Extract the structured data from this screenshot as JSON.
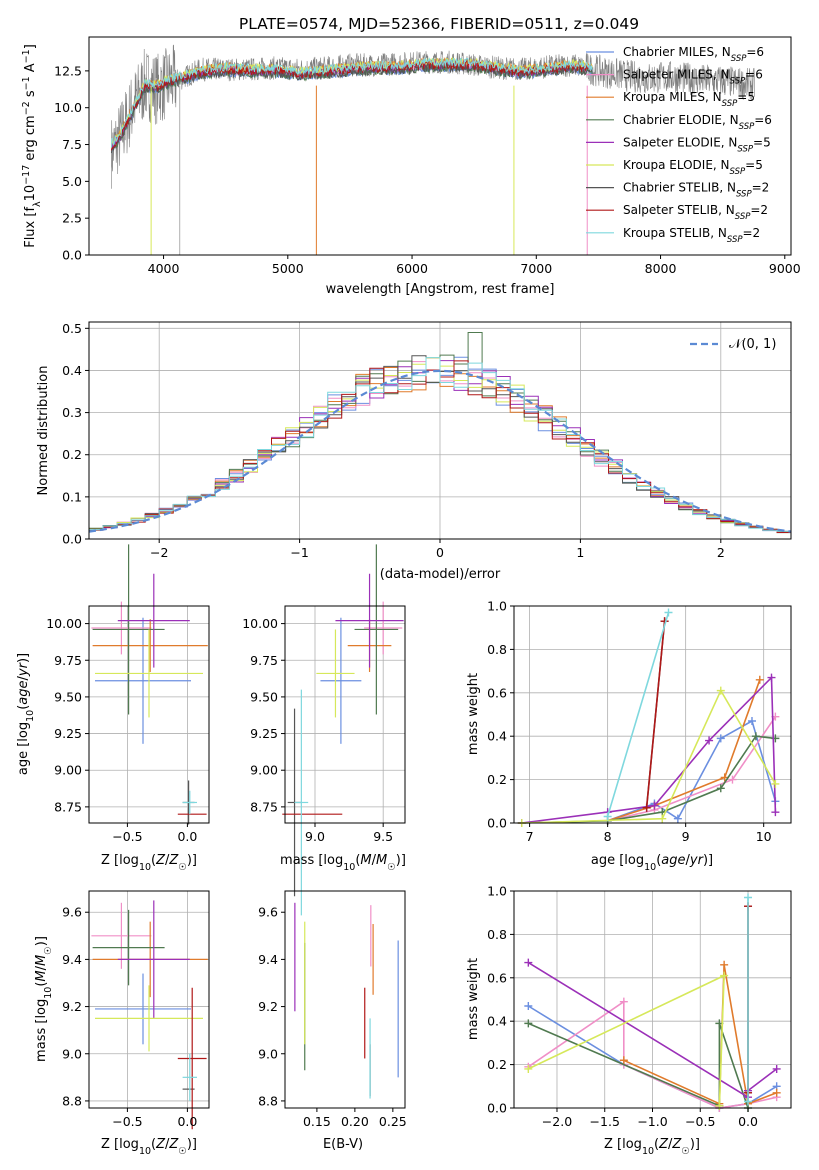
{
  "figure": {
    "title": "PLATE=0574, MJD=52366, FIBERID=0511, z=0.049"
  },
  "colors": {
    "Chabrier MILES": "#6b8fe0",
    "Salpeter MILES": "#f08fc7",
    "Kroupa MILES": "#e07b2c",
    "Chabrier ELODIE": "#507a50",
    "Salpeter ELODIE": "#9b30b8",
    "Kroupa ELODIE": "#d6e85a",
    "Chabrier STELIB": "#555555",
    "Salpeter STELIB": "#b01818",
    "Kroupa STELIB": "#7fd8de"
  },
  "chart_data": [
    {
      "id": "spectrum",
      "type": "line",
      "xlabel": "wavelength [Angstrom, rest frame]",
      "ylabel": "Flux [f_λ10^-17 erg cm^-2 s^-1 A^-1]",
      "xlim": [
        3400,
        9050
      ],
      "ylim": [
        0,
        14.8
      ],
      "xticks": [
        4000,
        5000,
        6000,
        7000,
        8000,
        9000
      ],
      "yticks": [
        0.0,
        2.5,
        5.0,
        7.5,
        10.0,
        12.5
      ],
      "ytick_labels": [
        "0.0",
        "2.5",
        "5.0",
        "7.5",
        "10.0",
        "12.5"
      ],
      "grid": false,
      "legend_position": "right",
      "series": [
        {
          "name": "Chabrier MILES, N_SSP=6",
          "label_main": "Chabrier MILES, N",
          "label_sub": "SSP",
          "label_tail": "=6"
        },
        {
          "name": "Salpeter MILES, N_SSP=6",
          "label_main": "Salpeter MILES, N",
          "label_sub": "SSP",
          "label_tail": "=6"
        },
        {
          "name": "Kroupa MILES, N_SSP=5",
          "label_main": "Kroupa MILES, N",
          "label_sub": "SSP",
          "label_tail": "=5"
        },
        {
          "name": "Chabrier ELODIE, N_SSP=6",
          "label_main": "Chabrier ELODIE, N",
          "label_sub": "SSP",
          "label_tail": "=6"
        },
        {
          "name": "Salpeter ELODIE, N_SSP=5",
          "label_main": "Salpeter ELODIE, N",
          "label_sub": "SSP",
          "label_tail": "=5"
        },
        {
          "name": "Kroupa ELODIE, N_SSP=5",
          "label_main": "Kroupa ELODIE, N",
          "label_sub": "SSP",
          "label_tail": "=5"
        },
        {
          "name": "Chabrier STELIB, N_SSP=2",
          "label_main": "Chabrier STELIB, N",
          "label_sub": "SSP",
          "label_tail": "=2"
        },
        {
          "name": "Salpeter STELIB, N_SSP=2",
          "label_main": "Salpeter STELIB, N",
          "label_sub": "SSP",
          "label_tail": "=2"
        },
        {
          "name": "Kroupa STELIB, N_SSP=2",
          "label_main": "Kroupa STELIB, N",
          "label_sub": "SSP",
          "label_tail": "=2"
        }
      ],
      "data_spectrum": {
        "x": [
          3580,
          3650,
          3750,
          3850,
          3950,
          4050,
          4150,
          4300,
          4500,
          4700,
          4900,
          5100,
          5300,
          5500,
          5700,
          5900,
          6100,
          6300,
          6500,
          6700,
          6900,
          7100,
          7300,
          7500,
          7700,
          7900,
          8100,
          8300,
          8500,
          8700
        ],
        "y": [
          7.0,
          8.0,
          10.0,
          11.6,
          11.3,
          11.7,
          12.0,
          12.6,
          12.6,
          12.6,
          12.7,
          12.6,
          12.7,
          12.9,
          12.9,
          13.0,
          13.1,
          13.1,
          12.9,
          12.7,
          12.6,
          12.8,
          12.9,
          12.5,
          12.2,
          12.0,
          12.1,
          11.9,
          11.8,
          11.6
        ]
      },
      "model_spectrum": {
        "x": [
          3580,
          3650,
          3750,
          3850,
          3950,
          4050,
          4150,
          4300,
          4500,
          4700,
          4900,
          5100,
          5300,
          5500,
          5700,
          5900,
          6100,
          6300,
          6500,
          6700,
          6900,
          7100,
          7300,
          7450
        ],
        "y": [
          7.4,
          8.0,
          9.8,
          11.5,
          11.4,
          11.8,
          12.0,
          12.4,
          12.6,
          12.5,
          12.5,
          12.3,
          12.4,
          12.6,
          12.7,
          12.7,
          12.9,
          12.9,
          12.9,
          12.6,
          12.4,
          12.6,
          12.8,
          12.6
        ]
      }
    },
    {
      "id": "residuals",
      "type": "bar",
      "xlabel": "(data-model)/error",
      "ylabel": "Normed distribution",
      "xlim": [
        -2.5,
        2.5
      ],
      "ylim": [
        0,
        0.515
      ],
      "xticks": [
        -2,
        -1,
        0,
        1,
        2
      ],
      "xtick_labels": [
        "−2",
        "−1",
        "0",
        "1",
        "2"
      ],
      "yticks": [
        0.0,
        0.1,
        0.2,
        0.3,
        0.4,
        0.5
      ],
      "ytick_labels": [
        "0.0",
        "0.1",
        "0.2",
        "0.3",
        "0.4",
        "0.5"
      ],
      "grid": true,
      "legend_position": "top-right",
      "legend_label": "𝒩(0, 1)",
      "gaussian": {
        "mean": 0,
        "sigma": 1
      }
    },
    {
      "id": "age_vs_Z",
      "type": "scatter",
      "xlabel": "Z [log10(Z/Z☉)]",
      "ylabel": "age  [log10(age/yr)]",
      "xlim": [
        -0.82,
        0.18
      ],
      "ylim": [
        8.64,
        10.12
      ],
      "xticks": [
        -0.5,
        0.0
      ],
      "xtick_labels": [
        "−0.5",
        "0.0"
      ],
      "yticks": [
        8.75,
        9.0,
        9.25,
        9.5,
        9.75,
        10.0
      ],
      "ytick_labels": [
        "8.75",
        "9.00",
        "9.25",
        "9.50",
        "9.75",
        "10.00"
      ],
      "grid": true,
      "points": [
        {
          "series": "Chabrier MILES",
          "x": -0.37,
          "y": 9.61,
          "xerr": 0.4,
          "yerr": 0.43
        },
        {
          "series": "Salpeter MILES",
          "x": -0.55,
          "y": 9.97,
          "xerr": 0.25,
          "yerr": 0.18
        },
        {
          "series": "Kroupa MILES",
          "x": -0.31,
          "y": 9.85,
          "xerr": 0.48,
          "yerr": 0.18
        },
        {
          "series": "Chabrier ELODIE",
          "x": -0.49,
          "y": 9.96,
          "xerr": 0.3,
          "yerr": 0.58
        },
        {
          "series": "Salpeter ELODIE",
          "x": -0.28,
          "y": 10.02,
          "xerr": 0.3,
          "yerr": 0.32
        },
        {
          "series": "Kroupa ELODIE",
          "x": -0.32,
          "y": 9.66,
          "xerr": 0.45,
          "yerr": 0.3
        },
        {
          "series": "Chabrier STELIB",
          "x": 0.01,
          "y": 8.78,
          "xerr": 0.05,
          "yerr": 0.15
        },
        {
          "series": "Salpeter STELIB",
          "x": 0.04,
          "y": 8.7,
          "xerr": 0.12,
          "yerr": 0.0
        },
        {
          "series": "Kroupa STELIB",
          "x": 0.02,
          "y": 8.78,
          "xerr": 0.06,
          "yerr": 0.08
        }
      ]
    },
    {
      "id": "age_vs_mass",
      "type": "scatter",
      "xlabel": "mass [log10(M/M☉)]",
      "ylabel": "",
      "xlim": [
        8.78,
        9.66
      ],
      "ylim": [
        8.64,
        10.12
      ],
      "xticks": [
        9.0,
        9.5
      ],
      "xtick_labels": [
        "9.0",
        "9.5"
      ],
      "yticks": [
        8.75,
        9.0,
        9.25,
        9.5,
        9.75,
        10.0
      ],
      "ytick_labels": [
        "8.75",
        "9.00",
        "9.25",
        "9.50",
        "9.75",
        "10.00"
      ],
      "grid": true,
      "points": [
        {
          "series": "Chabrier MILES",
          "x": 9.19,
          "y": 9.61,
          "xerr": 0.15,
          "yerr": 0.43
        },
        {
          "series": "Salpeter MILES",
          "x": 9.5,
          "y": 9.97,
          "xerr": 0.14,
          "yerr": 0.18
        },
        {
          "series": "Kroupa MILES",
          "x": 9.4,
          "y": 9.85,
          "xerr": 0.16,
          "yerr": 0.18
        },
        {
          "series": "Chabrier ELODIE",
          "x": 9.45,
          "y": 9.96,
          "xerr": 0.16,
          "yerr": 0.58
        },
        {
          "series": "Salpeter ELODIE",
          "x": 9.4,
          "y": 10.02,
          "xerr": 0.25,
          "yerr": 0.32
        },
        {
          "series": "Kroupa ELODIE",
          "x": 9.15,
          "y": 9.66,
          "xerr": 0.14,
          "yerr": 0.3
        },
        {
          "series": "Chabrier STELIB",
          "x": 8.85,
          "y": 8.78,
          "xerr": 0.05,
          "yerr": 0.64
        },
        {
          "series": "Salpeter STELIB",
          "x": 8.98,
          "y": 8.7,
          "xerr": 0.22,
          "yerr": 0.0
        },
        {
          "series": "Kroupa STELIB",
          "x": 8.9,
          "y": 8.78,
          "xerr": 0.05,
          "yerr": 0.77
        }
      ]
    },
    {
      "id": "massweight_vs_age",
      "type": "line",
      "xlabel": "age  [log10(age/yr)]",
      "ylabel": "mass weight",
      "xlim": [
        6.8,
        10.35
      ],
      "ylim": [
        0,
        1.0
      ],
      "xticks": [
        7,
        8,
        9,
        10
      ],
      "xtick_labels": [
        "7",
        "8",
        "9",
        "10"
      ],
      "yticks": [
        0.0,
        0.2,
        0.4,
        0.6,
        0.8,
        1.0
      ],
      "ytick_labels": [
        "0.0",
        "0.2",
        "0.4",
        "0.6",
        "0.8",
        "1.0"
      ],
      "grid": true,
      "series": [
        {
          "series": "Chabrier MILES",
          "x": [
            8.0,
            8.6,
            8.9,
            9.45,
            9.85,
            10.15
          ],
          "y": [
            0.01,
            0.09,
            0.02,
            0.39,
            0.47,
            0.1
          ]
        },
        {
          "series": "Salpeter MILES",
          "x": [
            8.0,
            8.6,
            9.6,
            10.15
          ],
          "y": [
            0.01,
            0.06,
            0.2,
            0.49
          ]
        },
        {
          "series": "Kroupa MILES",
          "x": [
            8.0,
            8.6,
            9.5,
            9.95
          ],
          "y": [
            0.01,
            0.08,
            0.21,
            0.66
          ]
        },
        {
          "series": "Chabrier ELODIE",
          "x": [
            6.9,
            8.0,
            8.7,
            9.45,
            9.9,
            10.15
          ],
          "y": [
            0.0,
            0.01,
            0.05,
            0.16,
            0.4,
            0.39
          ]
        },
        {
          "series": "Salpeter ELODIE",
          "x": [
            6.9,
            8.0,
            8.6,
            9.3,
            10.1,
            10.15
          ],
          "y": [
            0.0,
            0.05,
            0.08,
            0.38,
            0.67,
            0.05
          ]
        },
        {
          "series": "Kroupa ELODIE",
          "x": [
            6.9,
            8.7,
            9.45,
            10.15
          ],
          "y": [
            0.0,
            0.02,
            0.61,
            0.18
          ]
        },
        {
          "series": "Chabrier STELIB",
          "x": [
            8.5,
            8.73
          ],
          "y": [
            0.07,
            0.93
          ]
        },
        {
          "series": "Salpeter STELIB",
          "x": [
            8.5,
            8.73
          ],
          "y": [
            0.07,
            0.93
          ]
        },
        {
          "series": "Kroupa STELIB",
          "x": [
            8.0,
            8.78
          ],
          "y": [
            0.03,
            0.97
          ]
        }
      ]
    },
    {
      "id": "mass_vs_Z",
      "type": "scatter",
      "xlabel": "Z [log10(Z/Z☉)]",
      "ylabel": "mass [log10(M/M☉)]",
      "xlim": [
        -0.82,
        0.18
      ],
      "ylim": [
        8.77,
        9.69
      ],
      "xticks": [
        -0.5,
        0.0
      ],
      "xtick_labels": [
        "−0.5",
        "0.0"
      ],
      "yticks": [
        8.8,
        9.0,
        9.2,
        9.4,
        9.6
      ],
      "ytick_labels": [
        "8.8",
        "9.0",
        "9.2",
        "9.4",
        "9.6"
      ],
      "grid": true,
      "points": [
        {
          "series": "Chabrier MILES",
          "x": -0.37,
          "y": 9.19,
          "xerr": 0.4,
          "yerr": 0.15
        },
        {
          "series": "Salpeter MILES",
          "x": -0.55,
          "y": 9.5,
          "xerr": 0.25,
          "yerr": 0.14
        },
        {
          "series": "Kroupa MILES",
          "x": -0.31,
          "y": 9.4,
          "xerr": 0.48,
          "yerr": 0.16
        },
        {
          "series": "Chabrier ELODIE",
          "x": -0.49,
          "y": 9.45,
          "xerr": 0.3,
          "yerr": 0.16
        },
        {
          "series": "Salpeter ELODIE",
          "x": -0.28,
          "y": 9.4,
          "xerr": 0.3,
          "yerr": 0.25
        },
        {
          "series": "Kroupa ELODIE",
          "x": -0.32,
          "y": 9.15,
          "xerr": 0.45,
          "yerr": 0.14
        },
        {
          "series": "Chabrier STELIB",
          "x": 0.01,
          "y": 8.85,
          "xerr": 0.05,
          "yerr": 0.0
        },
        {
          "series": "Salpeter STELIB",
          "x": 0.04,
          "y": 8.98,
          "xerr": 0.12,
          "yerr": 0.3
        },
        {
          "series": "Kroupa STELIB",
          "x": 0.02,
          "y": 8.9,
          "xerr": 0.06,
          "yerr": 0.1
        }
      ]
    },
    {
      "id": "mass_vs_ebv",
      "type": "scatter",
      "xlabel": "E(B-V)",
      "ylabel": "",
      "xlim": [
        0.108,
        0.266
      ],
      "ylim": [
        8.77,
        9.69
      ],
      "xticks": [
        0.15,
        0.2,
        0.25
      ],
      "xtick_labels": [
        "0.15",
        "0.20",
        "0.25"
      ],
      "yticks": [
        8.8,
        9.0,
        9.2,
        9.4,
        9.6
      ],
      "ytick_labels": [
        "8.8",
        "9.0",
        "9.2",
        "9.4",
        "9.6"
      ],
      "grid": false,
      "points": [
        {
          "series": "Chabrier MILES",
          "x": 0.257,
          "y": 9.19,
          "xerr": 0.0,
          "yerr": 0.29
        },
        {
          "series": "Salpeter MILES",
          "x": 0.221,
          "y": 9.5,
          "xerr": 0.0,
          "yerr": 0.13
        },
        {
          "series": "Kroupa MILES",
          "x": 0.224,
          "y": 9.4,
          "xerr": 0.0,
          "yerr": 0.15
        },
        {
          "series": "Chabrier ELODIE",
          "x": 0.134,
          "y": 9.2,
          "xerr": 0.0,
          "yerr": 0.27
        },
        {
          "series": "Salpeter ELODIE",
          "x": 0.121,
          "y": 9.41,
          "xerr": 0.0,
          "yerr": 0.23
        },
        {
          "series": "Kroupa ELODIE",
          "x": 0.134,
          "y": 9.3,
          "xerr": 0.0,
          "yerr": 0.26
        },
        {
          "series": "Chabrier STELIB",
          "x": 0.22,
          "y": 8.93,
          "xerr": 0.0,
          "yerr": 0.11
        },
        {
          "series": "Salpeter STELIB",
          "x": 0.213,
          "y": 9.13,
          "xerr": 0.0,
          "yerr": 0.15
        },
        {
          "series": "Kroupa STELIB",
          "x": 0.22,
          "y": 8.98,
          "xerr": 0.0,
          "yerr": 0.17
        }
      ]
    },
    {
      "id": "massweight_vs_Z",
      "type": "line",
      "xlabel": "Z [log10(Z/Z☉)]",
      "ylabel": "mass weight",
      "xlim": [
        -2.45,
        0.45
      ],
      "ylim": [
        0,
        1.0
      ],
      "xticks": [
        -2.0,
        -1.5,
        -1.0,
        -0.5,
        0.0
      ],
      "xtick_labels": [
        "−2.0",
        "−1.5",
        "−1.0",
        "−0.5",
        "0.0"
      ],
      "yticks": [
        0.0,
        0.2,
        0.4,
        0.6,
        0.8,
        1.0
      ],
      "ytick_labels": [
        "0.0",
        "0.2",
        "0.4",
        "0.6",
        "0.8",
        "1.0"
      ],
      "grid": true,
      "series": [
        {
          "series": "Chabrier MILES",
          "x": [
            -2.3,
            -1.3,
            -0.3,
            0.0,
            0.3
          ],
          "y": [
            0.47,
            0.2,
            0.0,
            0.02,
            0.1
          ]
        },
        {
          "series": "Salpeter MILES",
          "x": [
            -2.3,
            -1.3,
            -1.3,
            -0.3,
            0.0,
            0.3
          ],
          "y": [
            0.19,
            0.49,
            0.2,
            0.0,
            0.02,
            0.05
          ]
        },
        {
          "series": "Kroupa MILES",
          "x": [
            -1.3,
            -0.3,
            -0.25,
            0.0,
            0.3
          ],
          "y": [
            0.22,
            0.02,
            0.66,
            0.02,
            0.07
          ]
        },
        {
          "series": "Chabrier ELODIE",
          "x": [
            -2.3,
            -0.3,
            -0.3,
            0.0
          ],
          "y": [
            0.39,
            0.01,
            0.39,
            0.0
          ]
        },
        {
          "series": "Salpeter ELODIE",
          "x": [
            -2.3,
            0.0,
            0.0,
            0.3
          ],
          "y": [
            0.67,
            0.05,
            0.08,
            0.18
          ]
        },
        {
          "series": "Kroupa ELODIE",
          "x": [
            -2.3,
            -0.25,
            -0.3
          ],
          "y": [
            0.18,
            0.61,
            0.01
          ]
        },
        {
          "series": "Chabrier STELIB",
          "x": [
            0.0,
            0.0
          ],
          "y": [
            0.07,
            0.93
          ]
        },
        {
          "series": "Salpeter STELIB",
          "x": [
            0.0,
            0.0
          ],
          "y": [
            0.07,
            0.93
          ]
        },
        {
          "series": "Kroupa STELIB",
          "x": [
            0.0,
            0.0
          ],
          "y": [
            0.03,
            0.97
          ]
        }
      ]
    }
  ]
}
